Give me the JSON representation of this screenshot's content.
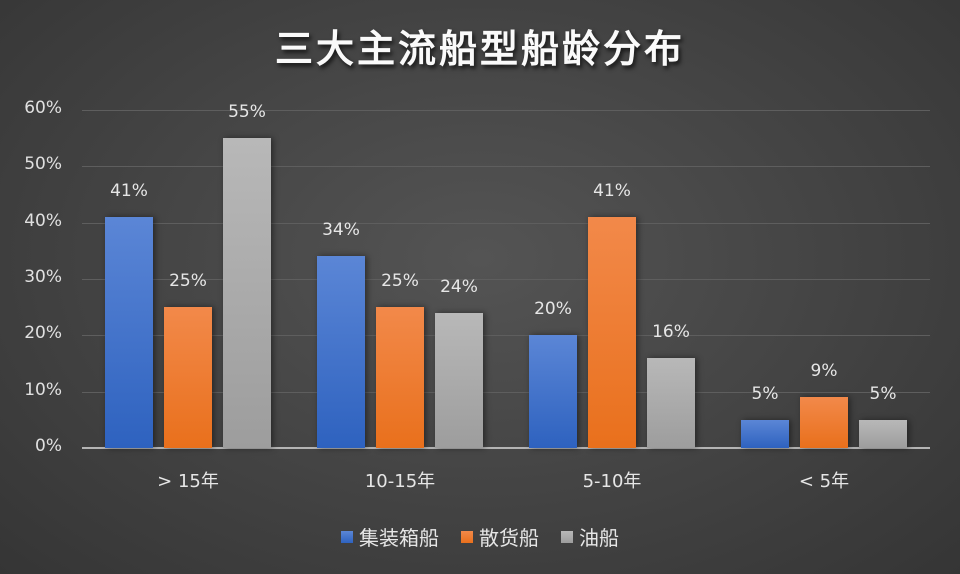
{
  "title": "三大主流船型船龄分布",
  "chart_data": {
    "type": "bar",
    "title": "三大主流船型船龄分布",
    "xlabel": "",
    "ylabel": "",
    "categories": [
      "> 15年",
      "10-15年",
      "5-10年",
      "< 5年"
    ],
    "series": [
      {
        "name": "集装箱船",
        "color": "#4472c4",
        "values": [
          41,
          34,
          20,
          5
        ],
        "labels": [
          "41%",
          "34%",
          "20%",
          "5%"
        ]
      },
      {
        "name": "散货船",
        "color": "#ed7d31",
        "values": [
          25,
          25,
          41,
          9
        ],
        "labels": [
          "25%",
          "25%",
          "41%",
          "9%"
        ]
      },
      {
        "name": "油船",
        "color": "#a5a5a5",
        "values": [
          55,
          24,
          16,
          5
        ],
        "labels": [
          "55%",
          "24%",
          "16%",
          "5%"
        ]
      }
    ],
    "yticks": [
      "0%",
      "10%",
      "20%",
      "30%",
      "40%",
      "50%",
      "60%"
    ],
    "ylim": [
      0,
      60
    ],
    "grid": true,
    "legend_position": "bottom"
  }
}
